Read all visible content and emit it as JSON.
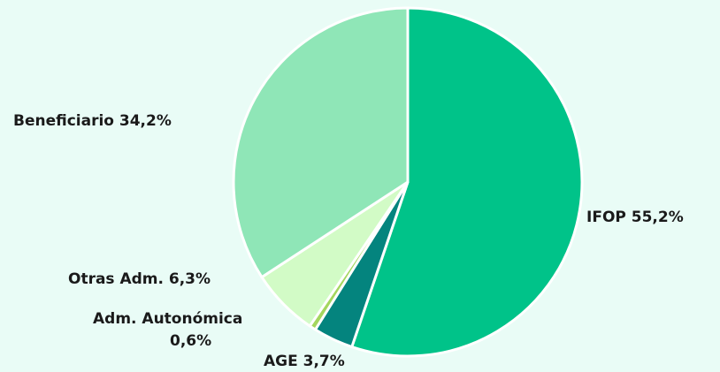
{
  "chart_data": {
    "type": "pie",
    "title": "",
    "slices": [
      {
        "label": "IFOP",
        "value": 55.2,
        "display": "IFOP 55,2%",
        "color": "#00c389"
      },
      {
        "label": "AGE",
        "value": 3.7,
        "display": "AGE 3,7%",
        "color": "#04847e"
      },
      {
        "label": "Adm. Autonómica",
        "value": 0.6,
        "display_line1": "Adm. Autonómica",
        "display_line2": "0,6%",
        "color": "#a4d65e"
      },
      {
        "label": "Otras Adm.",
        "value": 6.3,
        "display": "Otras Adm. 6,3%",
        "color": "#d2fbc6"
      },
      {
        "label": "Beneficiario",
        "value": 34.2,
        "display": "Beneficiario 34,2%",
        "color": "#8fe6b7"
      }
    ],
    "start_angle_deg": 0,
    "direction": "clockwise",
    "separator_color": "#ffffff",
    "background": "#e9fcf6"
  }
}
